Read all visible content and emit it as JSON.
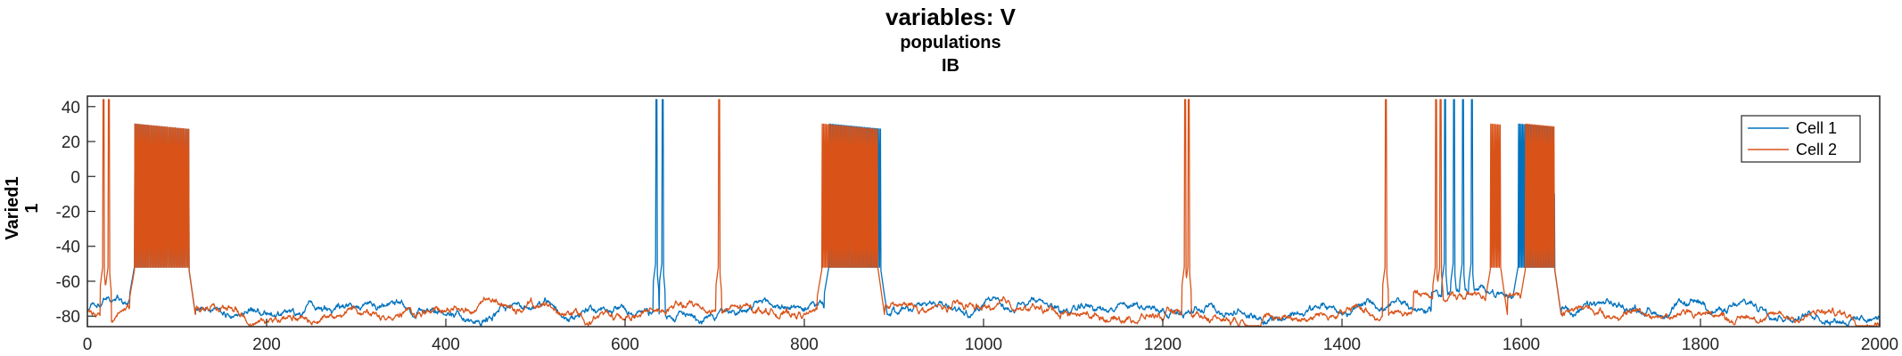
{
  "chart_data": {
    "type": "line",
    "title": "variables: V",
    "subtitle": "populations",
    "subtitle2": "IB",
    "ylabel_line1": "Varied1",
    "ylabel_line2": "1",
    "xlabel": "",
    "xlim": [
      0,
      2000
    ],
    "ylim": [
      -86,
      46
    ],
    "xticks": [
      0,
      200,
      400,
      600,
      800,
      1000,
      1200,
      1400,
      1600,
      1800,
      2000
    ],
    "yticks": [
      -80,
      -60,
      -40,
      -20,
      0,
      20,
      40
    ],
    "grid": false,
    "legend": {
      "position": "top-right"
    },
    "series": [
      {
        "name": "Cell 1",
        "color": "#0072BD",
        "rest": -76,
        "bursts": [
          [
            53,
            113
          ],
          [
            828,
            885
          ],
          [
            1597,
            1637
          ]
        ],
        "spikes": [
          635,
          642,
          1515,
          1525,
          1535,
          1545
        ],
        "depolarized": [
          [
            1500,
            1640
          ]
        ]
      },
      {
        "name": "Cell 2",
        "color": "#D95319",
        "rest": -78,
        "bursts": [
          [
            53,
            113
          ],
          [
            820,
            882
          ],
          [
            1566,
            1577
          ],
          [
            1605,
            1637
          ]
        ],
        "spikes": [
          18,
          24,
          705,
          1225,
          1229,
          1449,
          1505,
          1510
        ],
        "depolarized": [
          [
            1480,
            1640
          ]
        ]
      }
    ],
    "note_bursts": "burst plateau approx -52 mV, spike peaks approx +30 mV"
  }
}
